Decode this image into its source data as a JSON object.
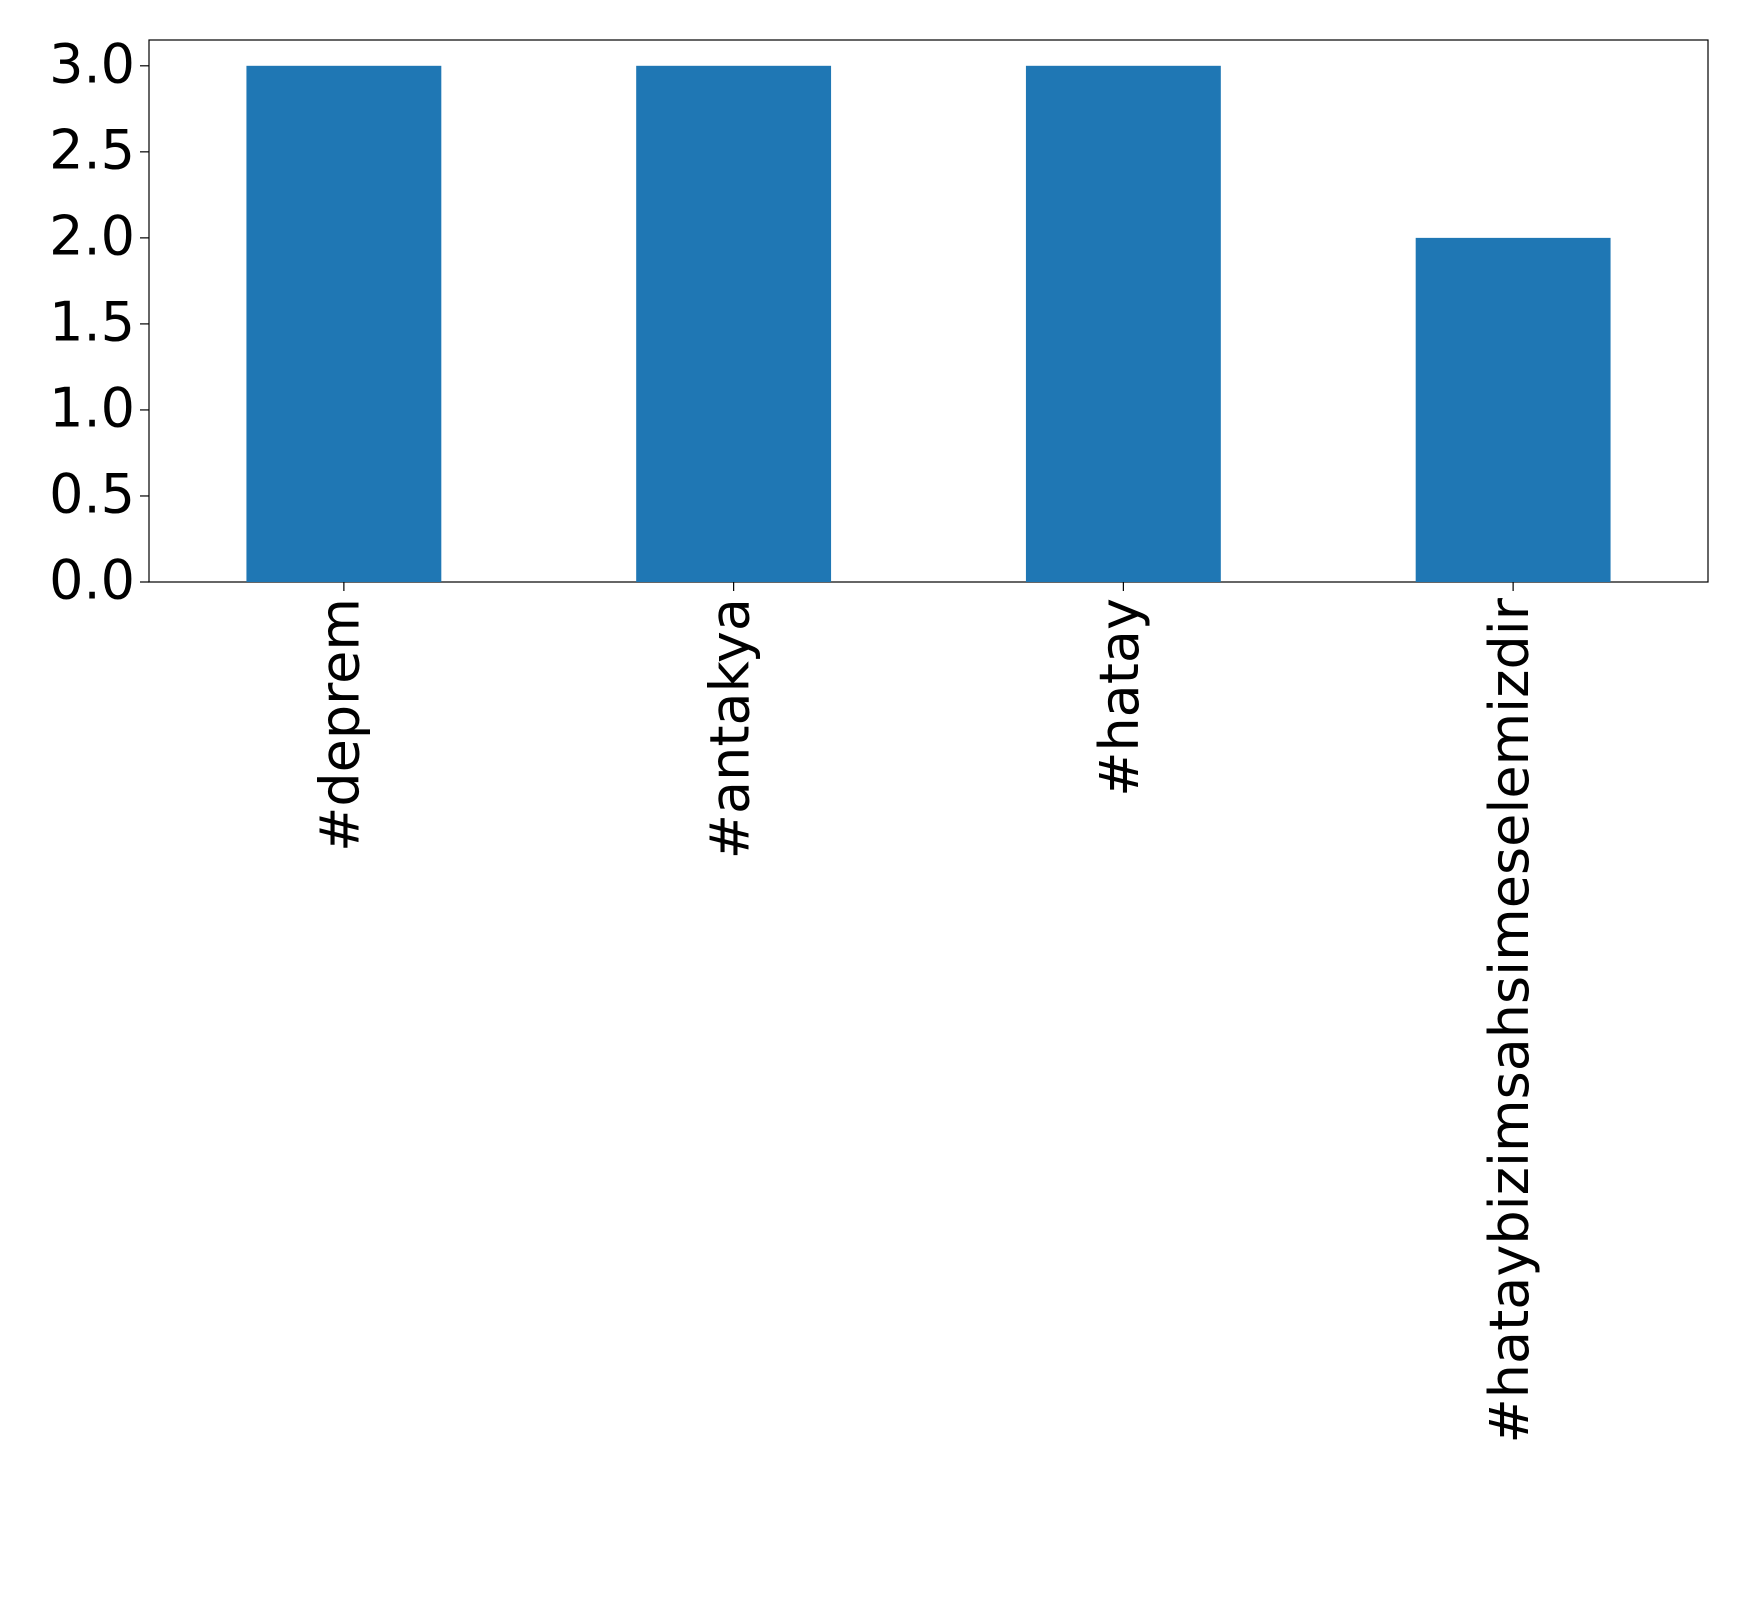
{
  "chart_data": {
    "type": "bar",
    "categories": [
      "#deprem",
      "#antakya",
      "#hatay",
      "#hataybizimsahsimeselemizdir"
    ],
    "values": [
      3,
      3,
      3,
      2
    ],
    "color": "#1f77b4",
    "ylim": [
      0,
      3.15
    ],
    "yticks": [
      {
        "value": 0,
        "label": "0.0"
      },
      0.5,
      {
        "value": 1,
        "label": "1.0"
      },
      1.5,
      {
        "value": 2,
        "label": "2.0"
      },
      2.5,
      {
        "value": 3,
        "label": "3.0"
      }
    ],
    "grid": false
  }
}
